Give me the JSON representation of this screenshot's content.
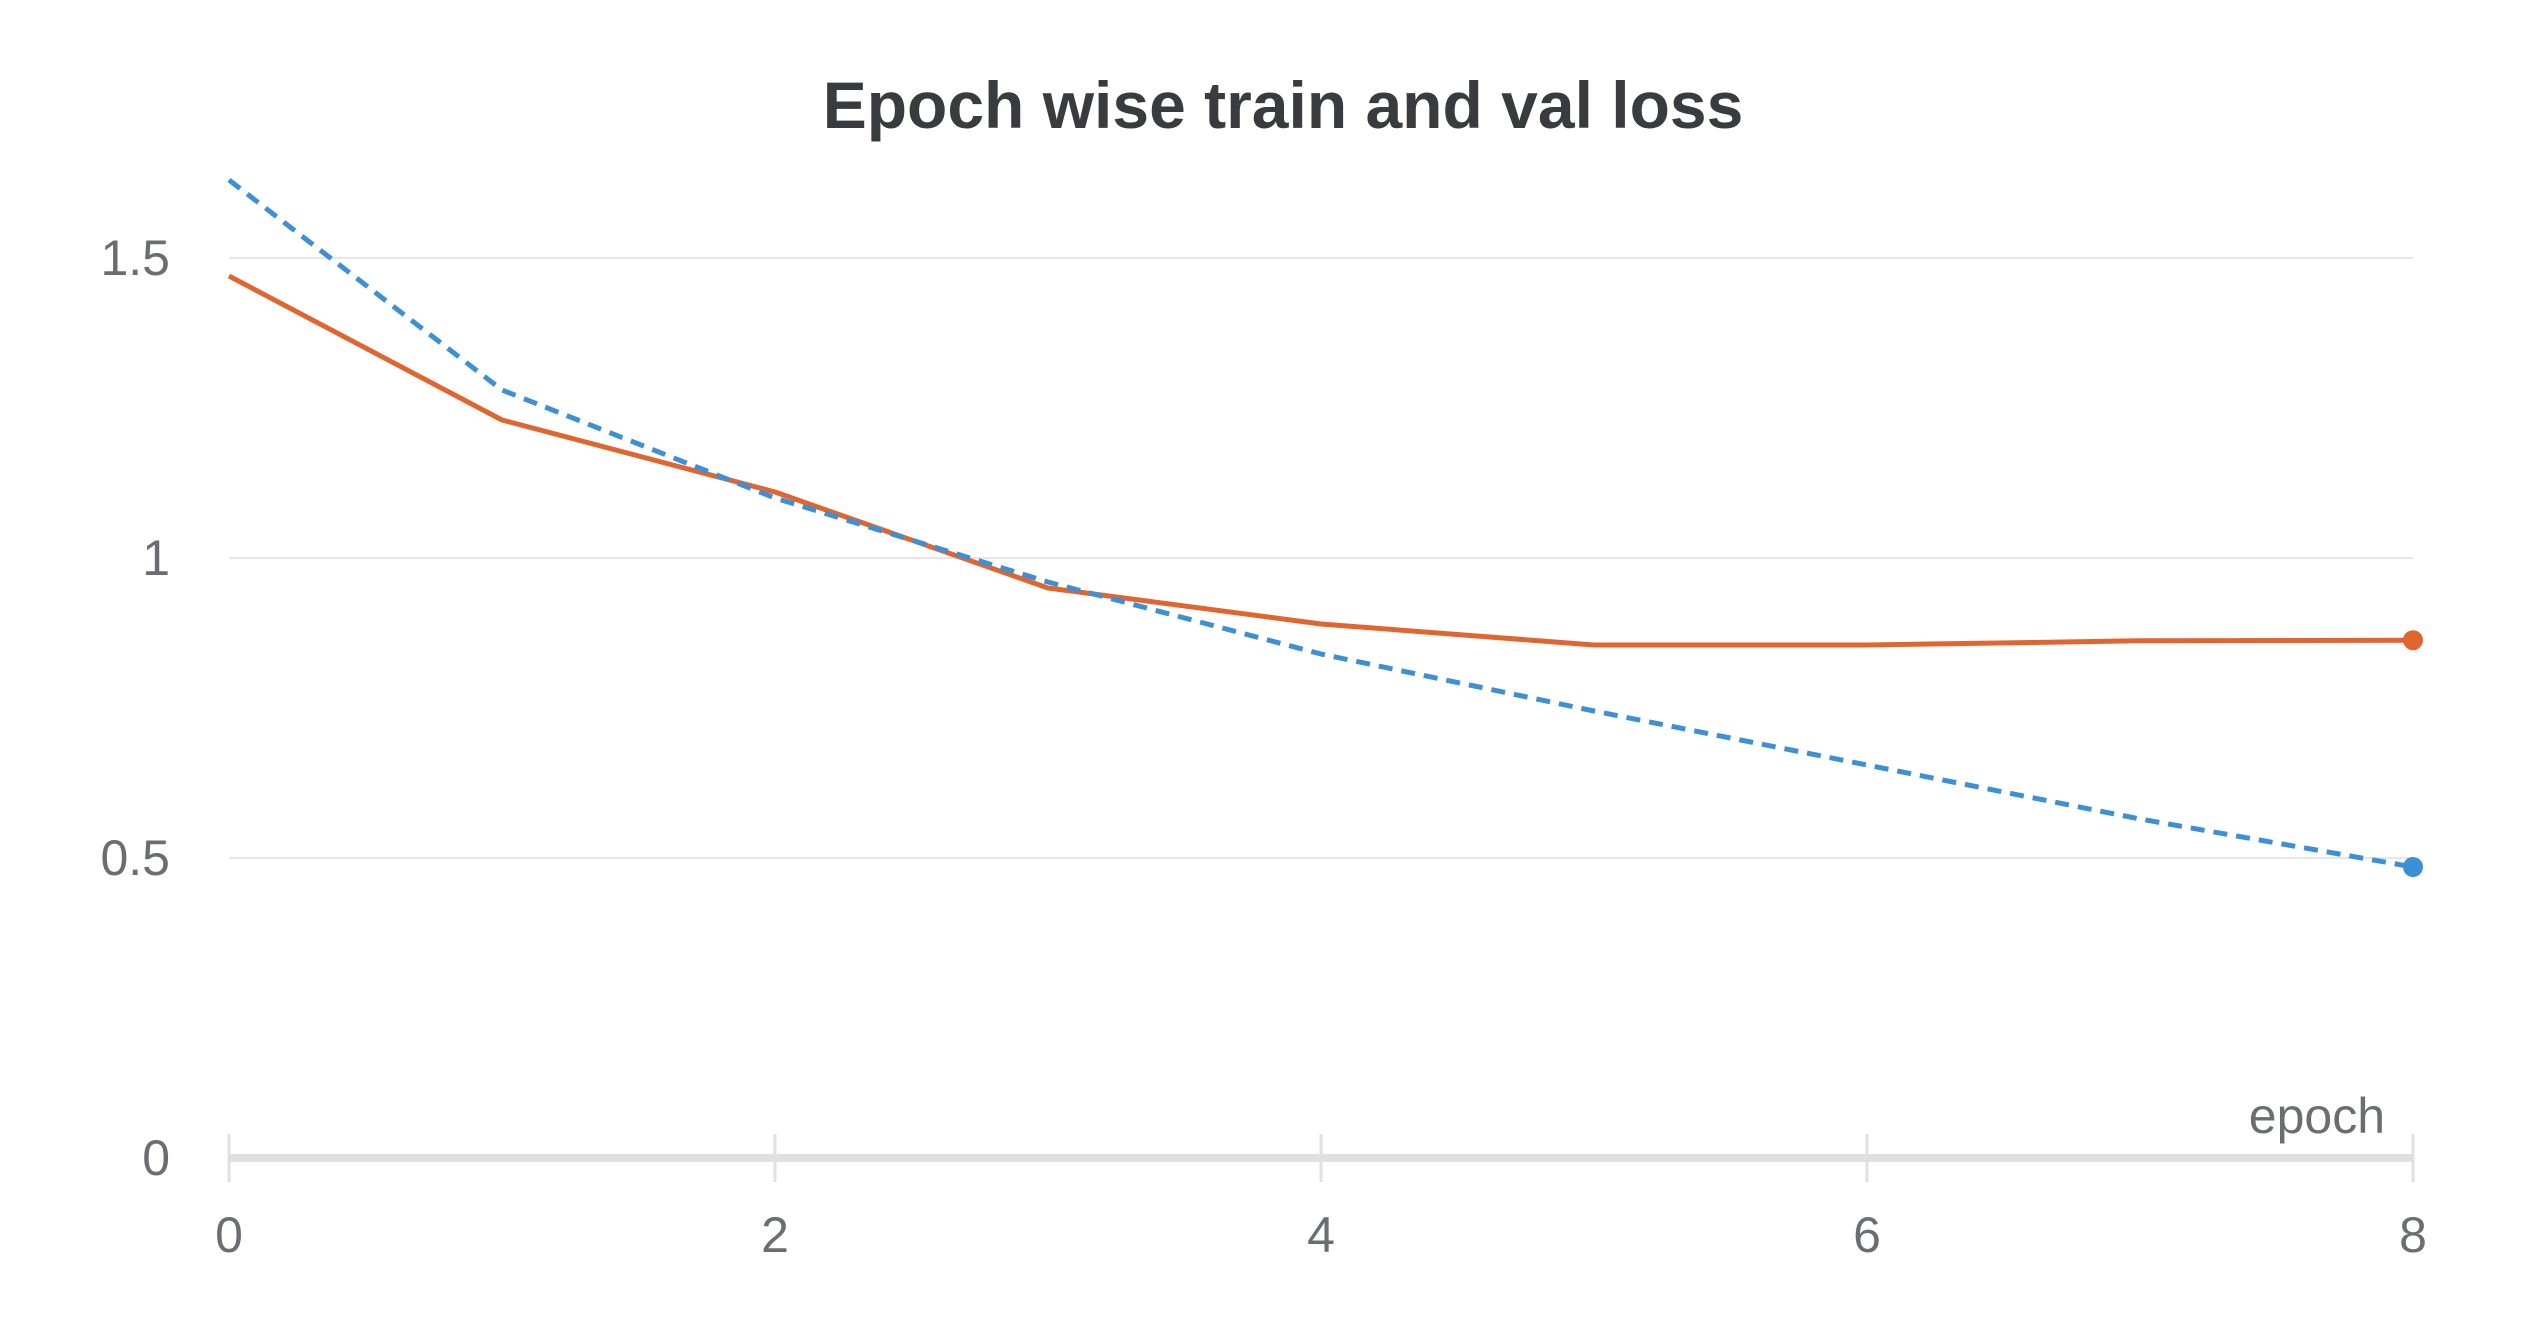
{
  "chart_data": {
    "type": "line",
    "title": "Epoch wise train and val loss",
    "xlabel": "epoch",
    "ylabel": "",
    "xlim": [
      0,
      8
    ],
    "ylim": [
      0,
      1.65
    ],
    "x_ticks": [
      0,
      2,
      4,
      6,
      8
    ],
    "y_ticks": [
      0,
      0.5,
      1,
      1.5
    ],
    "x_tick_labels": [
      "0",
      "2",
      "4",
      "6",
      "8"
    ],
    "y_tick_labels": [
      "0",
      "0.5",
      "1",
      "1.5"
    ],
    "grid": true,
    "legend": "none",
    "x": [
      0,
      1,
      2,
      3,
      4,
      5,
      6,
      7,
      8
    ],
    "series": [
      {
        "color": "#e0652f",
        "style": "solid",
        "values": [
          1.47,
          1.23,
          1.11,
          0.95,
          0.89,
          0.855,
          0.855,
          0.862,
          0.863
        ]
      },
      {
        "color": "#3d8fd6",
        "style": "dashed",
        "values": [
          1.63,
          1.28,
          1.1,
          0.96,
          0.84,
          0.745,
          0.655,
          0.565,
          0.485
        ]
      }
    ]
  }
}
